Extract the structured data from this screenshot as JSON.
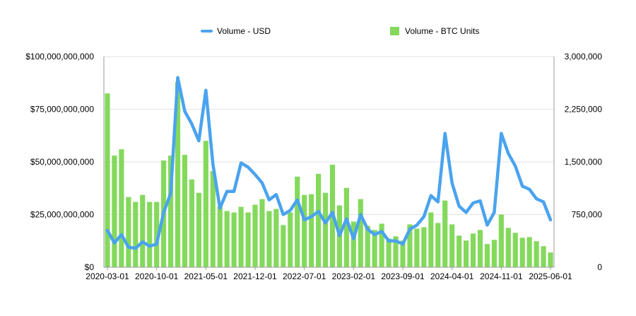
{
  "chart_data": {
    "type": "bar+line",
    "title": "",
    "legend": {
      "position": "top-center",
      "entries": [
        {
          "name": "Volume - USD",
          "kind": "line",
          "color": "#4aa3ee"
        },
        {
          "name": "Volume - BTC Units",
          "kind": "bar",
          "color": "#84d95c"
        }
      ]
    },
    "x_ticks": [
      "2020-03-01",
      "2020-10-01",
      "2021-05-01",
      "2021-12-01",
      "2022-07-01",
      "2023-02-01",
      "2023-09-01",
      "2024-04-01",
      "2024-11-01",
      "2025-06-01"
    ],
    "y_left": {
      "label": "",
      "min": 0,
      "max": 100000000000,
      "ticks": [
        0,
        25000000000,
        50000000000,
        75000000000,
        100000000000
      ],
      "tick_labels": [
        "$0",
        "$25,000,000,000",
        "$50,000,000,000",
        "$75,000,000,000",
        "$100,000,000,000"
      ]
    },
    "y_right": {
      "label": "",
      "min": 0,
      "max": 3000000,
      "ticks": [
        0,
        750000,
        1500000,
        2250000,
        3000000
      ],
      "tick_labels": [
        "0",
        "750,000",
        "1,500,000",
        "2,250,000",
        "3,000,000"
      ]
    },
    "grid": true,
    "series": [
      {
        "name": "Volume - USD",
        "axis": "left",
        "type": "line",
        "color": "#4aa3ee",
        "values": [
          17500000000,
          11500000000,
          15500000000,
          9500000000,
          9000000000,
          12000000000,
          10000000000,
          11000000000,
          26000000000,
          35000000000,
          90000000000,
          74000000000,
          68000000000,
          60000000000,
          84000000000,
          49000000000,
          28000000000,
          36000000000,
          36000000000,
          49500000000,
          47500000000,
          44000000000,
          40000000000,
          32000000000,
          34500000000,
          25000000000,
          27000000000,
          32000000000,
          22500000000,
          24000000000,
          26500000000,
          21000000000,
          26000000000,
          15000000000,
          23000000000,
          13500000000,
          25000000000,
          18000000000,
          15500000000,
          17000000000,
          12500000000,
          12500000000,
          11000000000,
          18000000000,
          20000000000,
          24000000000,
          34000000000,
          31000000000,
          63500000000,
          40000000000,
          29000000000,
          26000000000,
          30500000000,
          31500000000,
          20000000000,
          26000000000,
          63500000000,
          54000000000,
          48000000000,
          38500000000,
          37000000000,
          32500000000,
          31000000000,
          22500000000
        ]
      },
      {
        "name": "Volume - BTC Units",
        "axis": "right",
        "type": "bar",
        "color": "#84d95c",
        "values": [
          2475000,
          1590000,
          1680000,
          1000000,
          930000,
          1030000,
          930000,
          930000,
          1520000,
          1590000,
          2640000,
          1600000,
          1250000,
          1060000,
          1800000,
          1370000,
          870000,
          800000,
          780000,
          860000,
          780000,
          890000,
          970000,
          800000,
          830000,
          600000,
          780000,
          1290000,
          1030000,
          1040000,
          1330000,
          1060000,
          1460000,
          880000,
          1130000,
          650000,
          970000,
          590000,
          530000,
          620000,
          410000,
          440000,
          380000,
          610000,
          550000,
          570000,
          780000,
          630000,
          950000,
          610000,
          450000,
          380000,
          480000,
          530000,
          330000,
          390000,
          750000,
          560000,
          490000,
          420000,
          430000,
          370000,
          300000,
          210000
        ]
      }
    ]
  }
}
